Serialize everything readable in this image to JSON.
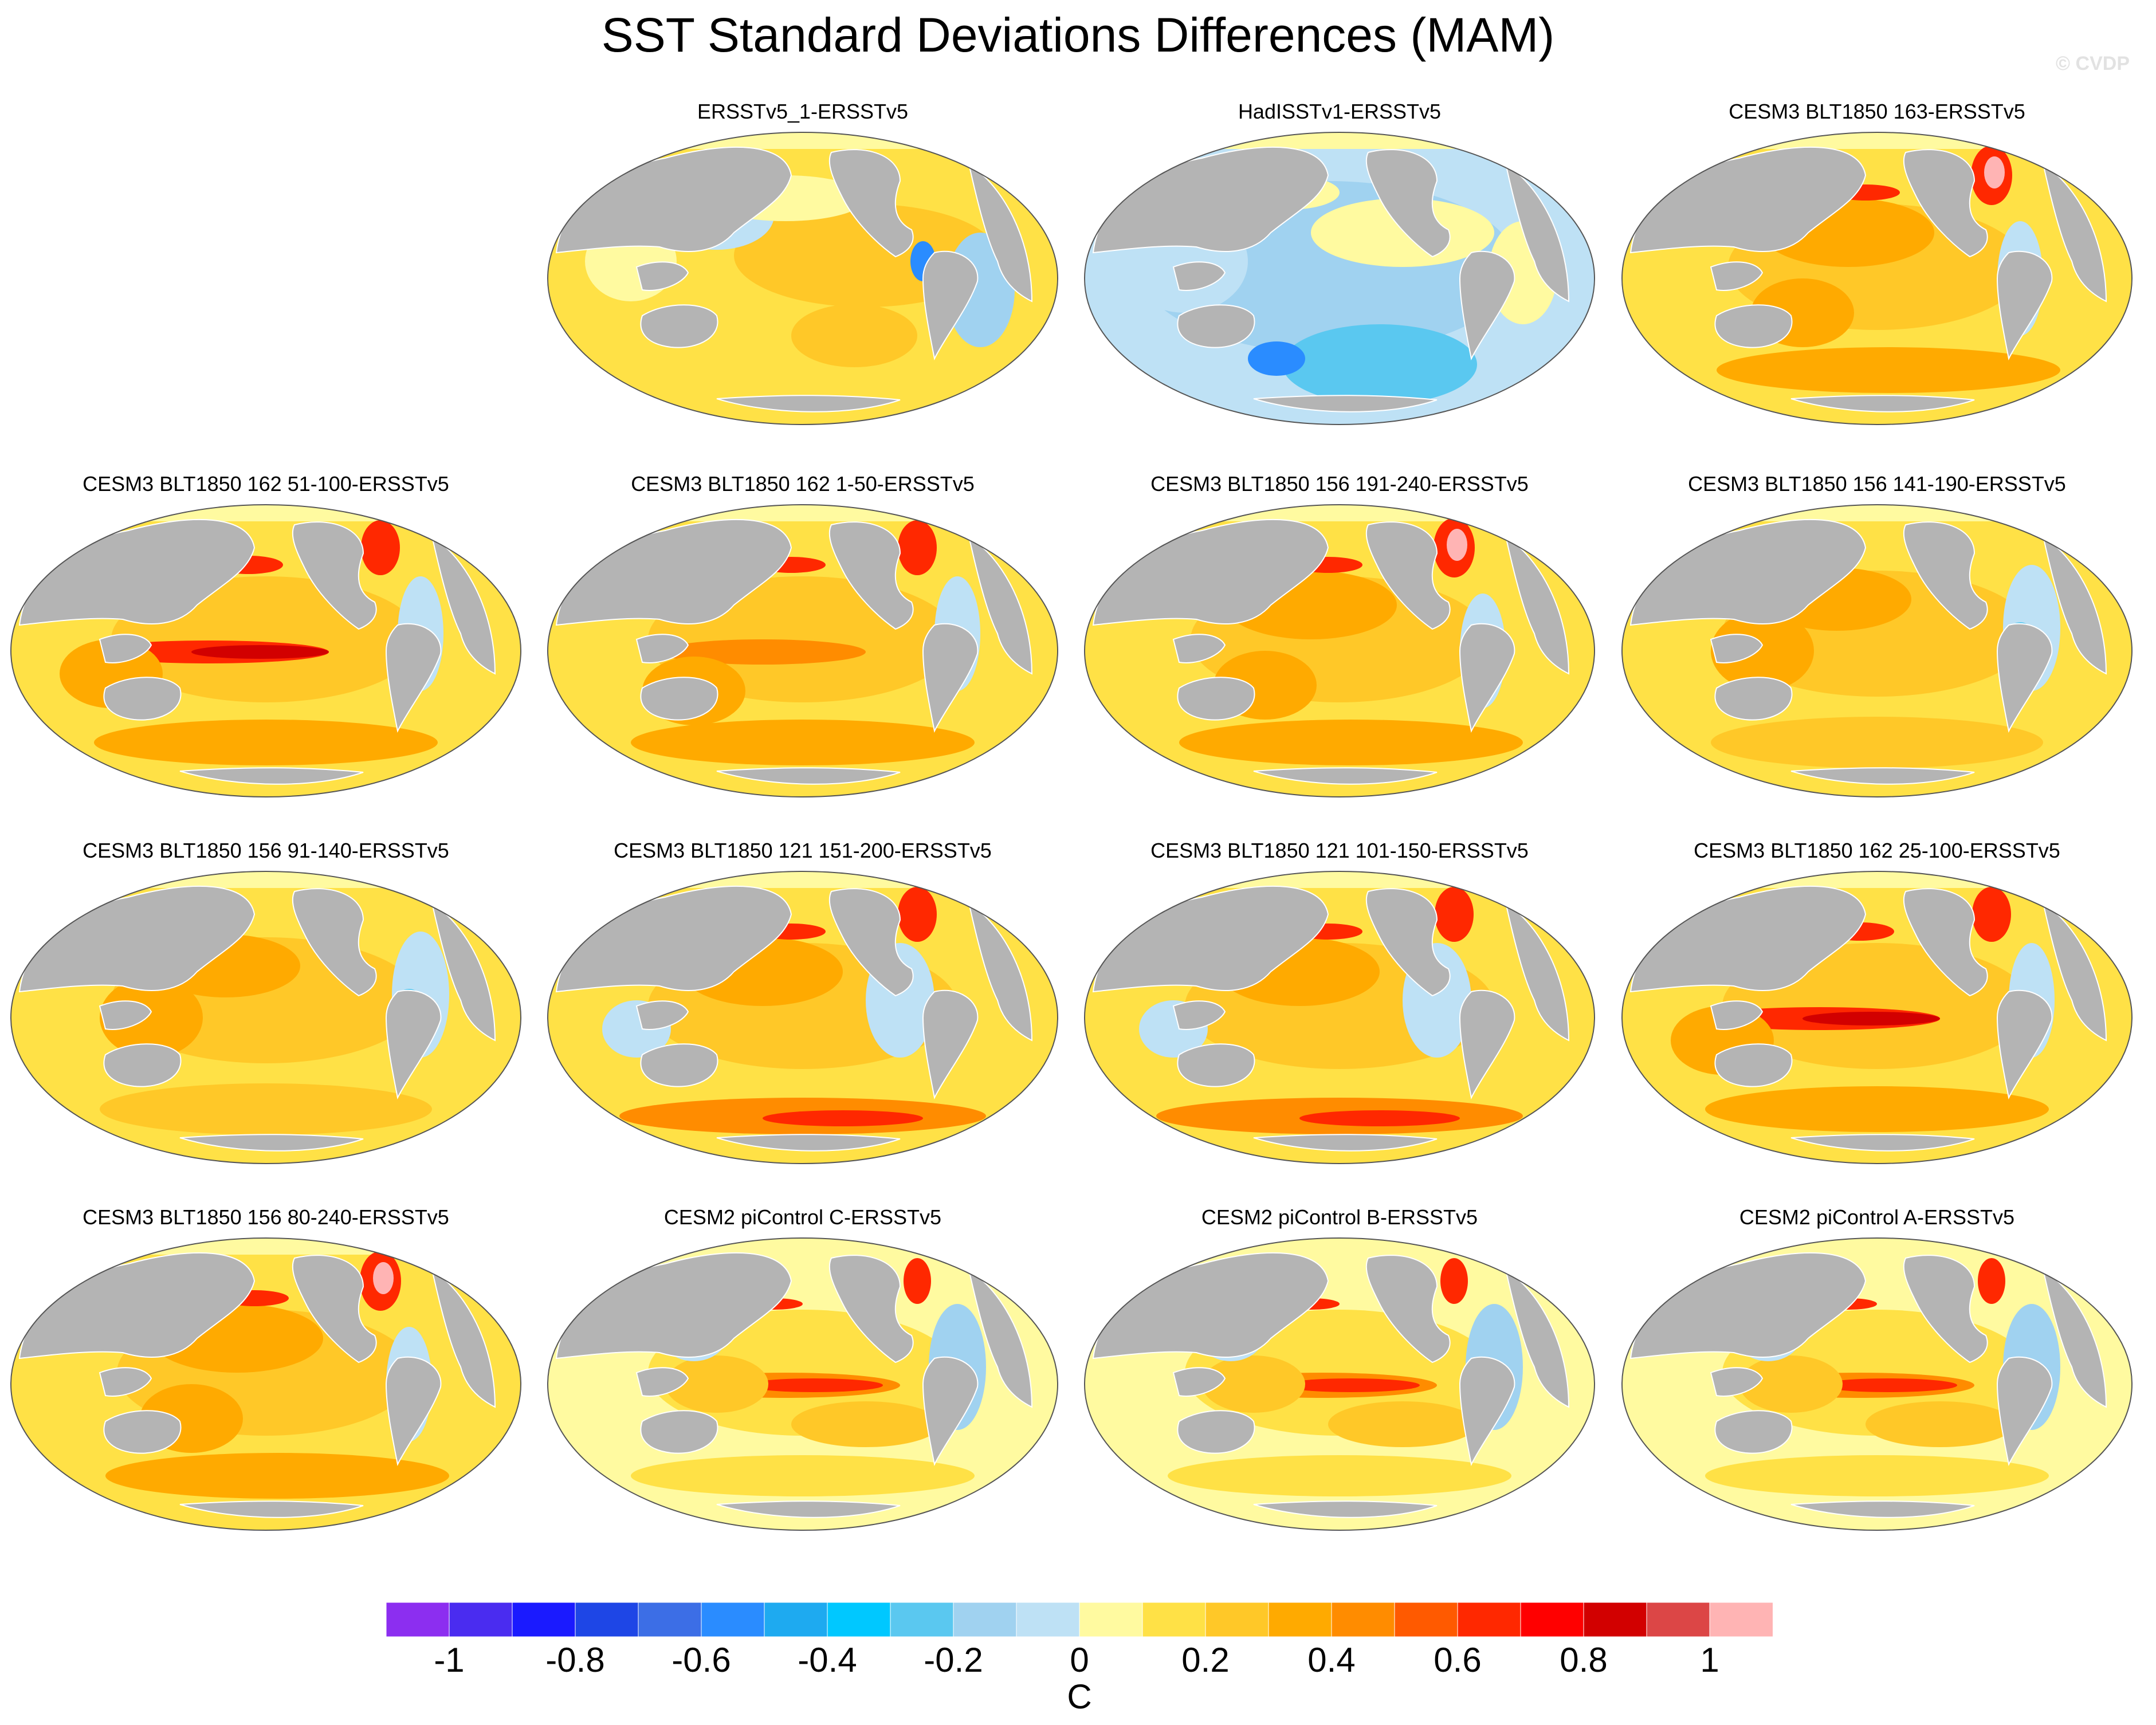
{
  "title": "SST Standard Deviations Differences (MAM)",
  "watermark": "© CVDP",
  "panels": [
    {
      "title": "ERSSTv5_1-ERSSTv5",
      "pattern": "weak-positive"
    },
    {
      "title": "HadISSTv1-ERSSTv5",
      "pattern": "weak-negative"
    },
    {
      "title": "CESM3 BLT1850 163-ERSSTv5",
      "pattern": "positive-north-atlantic"
    },
    {
      "title": "CESM3 BLT1850 162 51-100-ERSSTv5",
      "pattern": "positive-strong-enso"
    },
    {
      "title": "CESM3 BLT1850 162 1-50-ERSSTv5",
      "pattern": "positive-enso"
    },
    {
      "title": "CESM3 BLT1850 156 191-240-ERSSTv5",
      "pattern": "positive-north-atlantic"
    },
    {
      "title": "CESM3 BLT1850 156 141-190-ERSSTv5",
      "pattern": "positive"
    },
    {
      "title": "CESM3 BLT1850 156 91-140-ERSSTv5",
      "pattern": "positive"
    },
    {
      "title": "CESM3 BLT1850 121 151-200-ERSSTv5",
      "pattern": "positive-southern-ocean"
    },
    {
      "title": "CESM3 BLT1850 121 101-150-ERSSTv5",
      "pattern": "positive-southern-ocean"
    },
    {
      "title": "CESM3 BLT1850 162 25-100-ERSSTv5",
      "pattern": "positive-strong-enso"
    },
    {
      "title": "CESM3 BLT1850 156 80-240-ERSSTv5",
      "pattern": "positive-north-atlantic"
    },
    {
      "title": "CESM2 piControl C-ERSSTv5",
      "pattern": "cesm2-enso"
    },
    {
      "title": "CESM2 piControl B-ERSSTv5",
      "pattern": "cesm2-enso"
    },
    {
      "title": "CESM2 piControl A-ERSSTv5",
      "pattern": "cesm2-enso"
    }
  ],
  "colorbar": {
    "colors": [
      "#8c2ef0",
      "#4a2cf0",
      "#1a1aff",
      "#1e46e6",
      "#3c6ee6",
      "#2a8cff",
      "#1eaaf0",
      "#00c8ff",
      "#5ac8f0",
      "#a0d2f0",
      "#bee1f5",
      "#fffaa0",
      "#ffe146",
      "#ffc828",
      "#ffaa00",
      "#ff8c00",
      "#ff5a00",
      "#ff2800",
      "#ff0000",
      "#d20000",
      "#dc4646",
      "#ffb4b4"
    ],
    "labels": [
      "-1",
      "-0.8",
      "-0.6",
      "-0.4",
      "-0.2",
      "0",
      "0.2",
      "0.4",
      "0.6",
      "0.8",
      "1"
    ],
    "label_values": [
      -1,
      -0.8,
      -0.6,
      -0.4,
      -0.2,
      0,
      0.2,
      0.4,
      0.6,
      0.8,
      1
    ],
    "min": -1.1,
    "max": 1.1,
    "unit": "C"
  }
}
